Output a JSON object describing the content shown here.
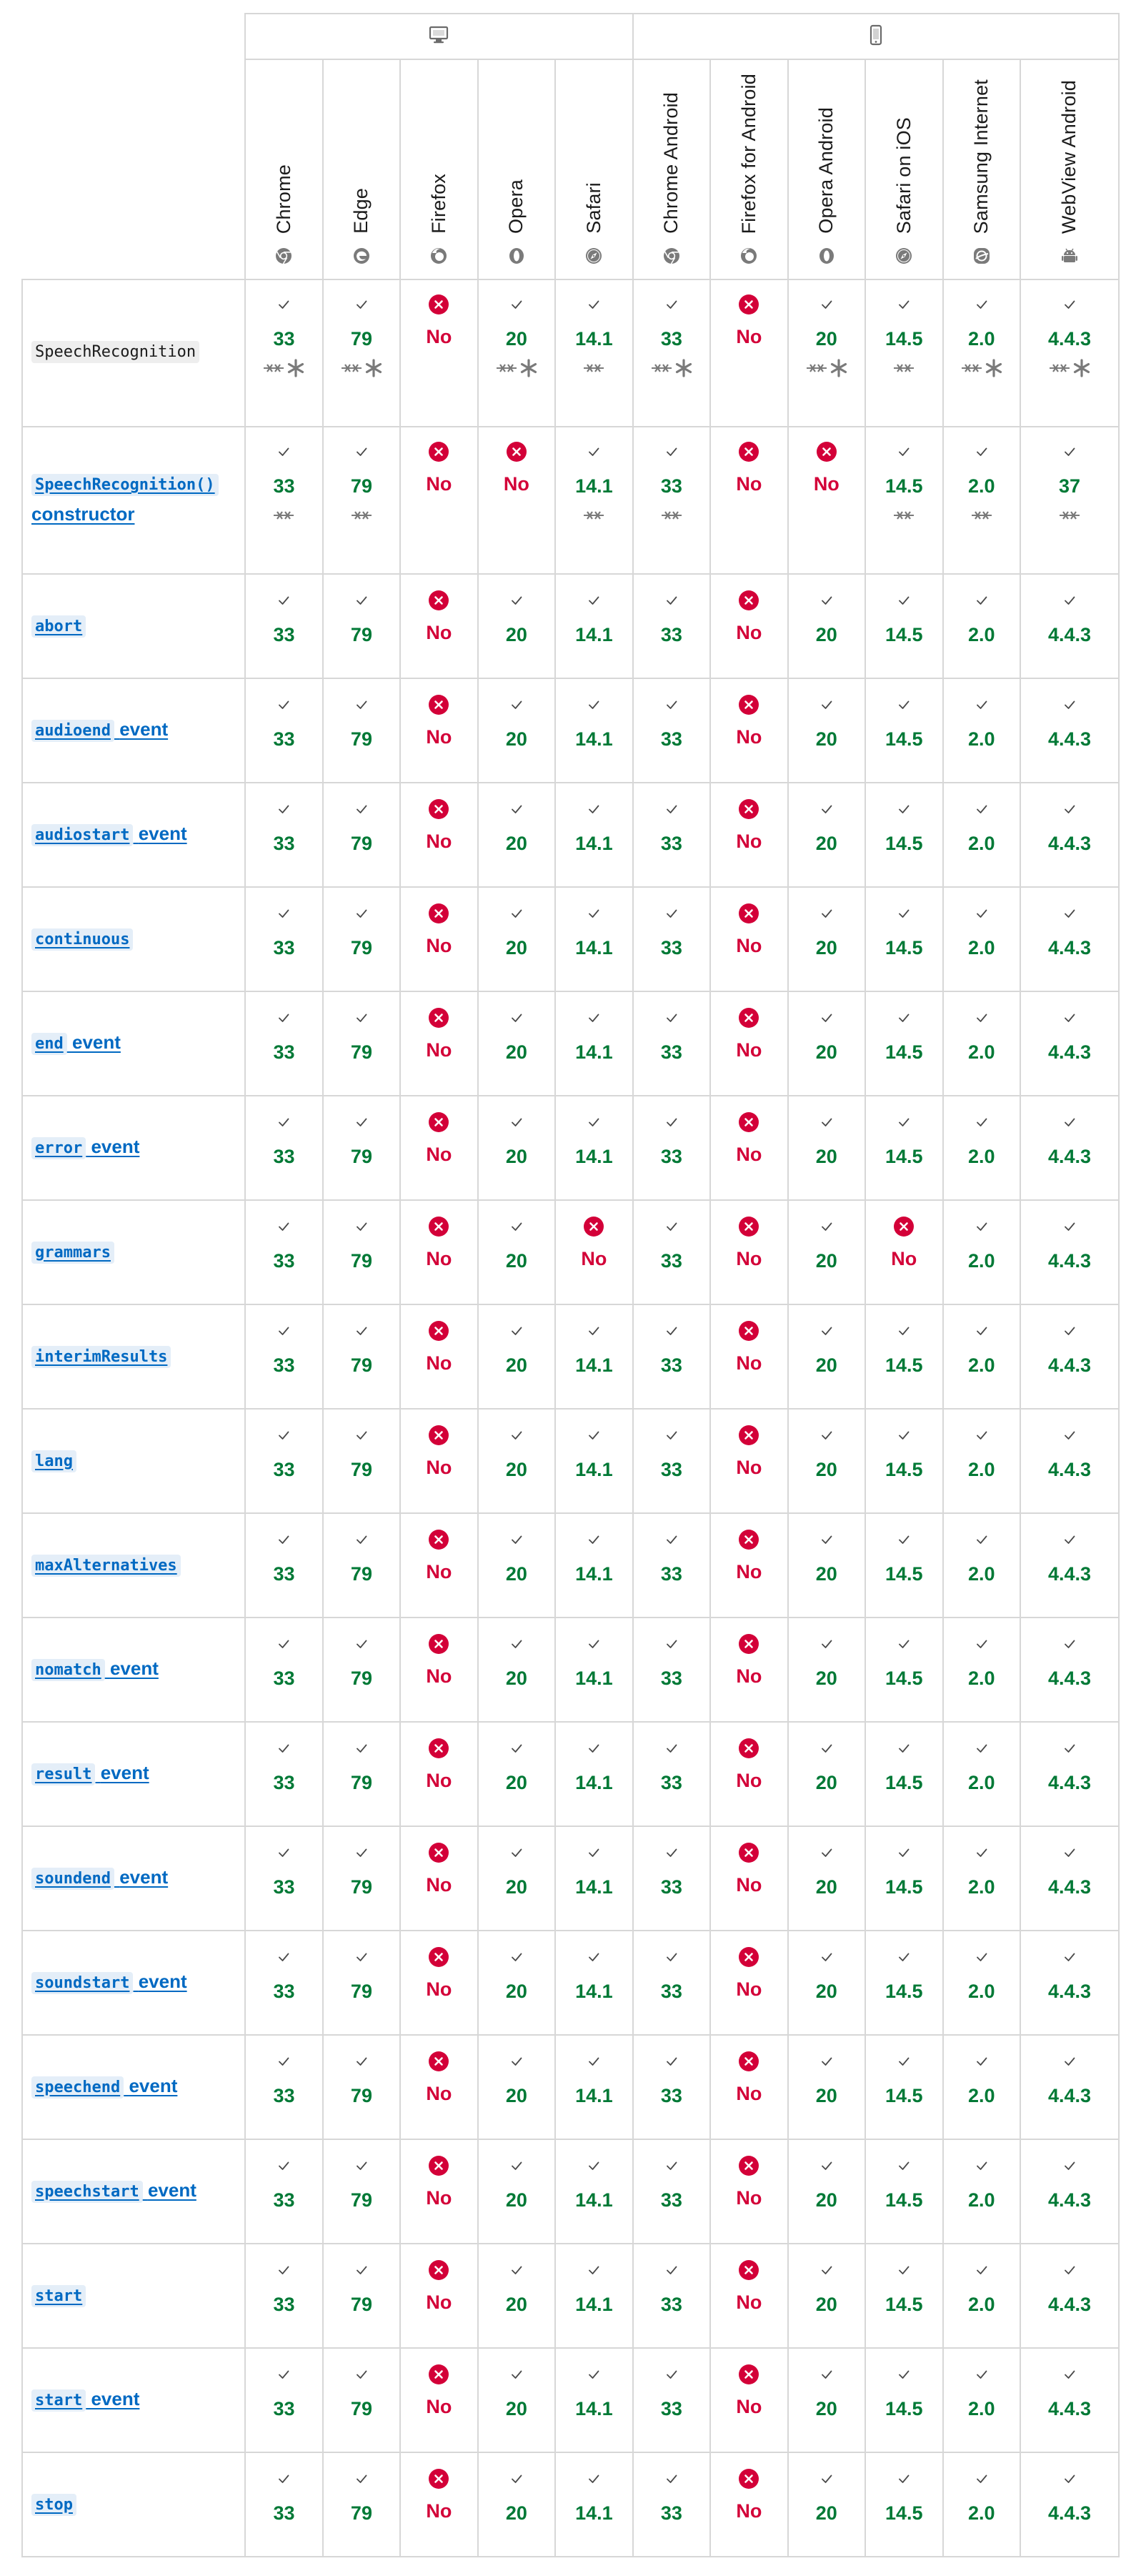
{
  "platforms": [
    {
      "name": "desktop-icon",
      "colspan": 5
    },
    {
      "name": "mobile-icon",
      "colspan": 6
    }
  ],
  "browsers": [
    {
      "label": "Chrome",
      "icon": "chrome-icon"
    },
    {
      "label": "Edge",
      "icon": "edge-icon"
    },
    {
      "label": "Firefox",
      "icon": "firefox-icon"
    },
    {
      "label": "Opera",
      "icon": "opera-icon"
    },
    {
      "label": "Safari",
      "icon": "safari-icon"
    },
    {
      "label": "Chrome Android",
      "icon": "chrome-icon"
    },
    {
      "label": "Firefox for Android",
      "icon": "firefox-icon"
    },
    {
      "label": "Opera Android",
      "icon": "opera-icon"
    },
    {
      "label": "Safari on iOS",
      "icon": "safari-icon"
    },
    {
      "label": "Samsung Internet",
      "icon": "samsung-internet-icon"
    },
    {
      "label": "WebView Android",
      "icon": "android-icon"
    }
  ],
  "colors": {
    "yes": "#007936",
    "no": "#d30038",
    "border": "#d7d7d7",
    "link": "#0069c2"
  },
  "rows": [
    {
      "code": "SpeechRecognition",
      "text": "",
      "link": false,
      "tall": true,
      "cells": [
        [
          "33",
          "y",
          "pd"
        ],
        [
          "79",
          "y",
          "pd"
        ],
        [
          "No",
          "n",
          ""
        ],
        [
          "20",
          "y",
          "pd"
        ],
        [
          "14.1",
          "y",
          "p"
        ],
        [
          "33",
          "y",
          "pd"
        ],
        [
          "No",
          "n",
          ""
        ],
        [
          "20",
          "y",
          "pd"
        ],
        [
          "14.5",
          "y",
          "p"
        ],
        [
          "2.0",
          "y",
          "pd"
        ],
        [
          "4.4.3",
          "y",
          "pd"
        ]
      ]
    },
    {
      "code": "SpeechRecognition()",
      "text": "constructor",
      "link": true,
      "tall": true,
      "wrap": true,
      "cells": [
        [
          "33",
          "y",
          "p"
        ],
        [
          "79",
          "y",
          "p"
        ],
        [
          "No",
          "n",
          ""
        ],
        [
          "No",
          "n",
          ""
        ],
        [
          "14.1",
          "y",
          "p"
        ],
        [
          "33",
          "y",
          "p"
        ],
        [
          "No",
          "n",
          ""
        ],
        [
          "No",
          "n",
          ""
        ],
        [
          "14.5",
          "y",
          "p"
        ],
        [
          "2.0",
          "y",
          "p"
        ],
        [
          "37",
          "y",
          "p"
        ]
      ]
    },
    {
      "code": "abort",
      "text": "",
      "link": true,
      "std": true
    },
    {
      "code": "audioend",
      "text": "event",
      "link": true,
      "std": true
    },
    {
      "code": "audiostart",
      "text": "event",
      "link": true,
      "std": true
    },
    {
      "code": "continuous",
      "text": "",
      "link": true,
      "std": true
    },
    {
      "code": "end",
      "text": "event",
      "link": true,
      "std": true
    },
    {
      "code": "error",
      "text": "event",
      "link": true,
      "std": true
    },
    {
      "code": "grammars",
      "text": "",
      "link": true,
      "cells": [
        [
          "33",
          "y",
          ""
        ],
        [
          "79",
          "y",
          ""
        ],
        [
          "No",
          "n",
          ""
        ],
        [
          "20",
          "y",
          ""
        ],
        [
          "No",
          "n",
          ""
        ],
        [
          "33",
          "y",
          ""
        ],
        [
          "No",
          "n",
          ""
        ],
        [
          "20",
          "y",
          ""
        ],
        [
          "No",
          "n",
          ""
        ],
        [
          "2.0",
          "y",
          ""
        ],
        [
          "4.4.3",
          "y",
          ""
        ]
      ]
    },
    {
      "code": "interimResults",
      "text": "",
      "link": true,
      "std": true
    },
    {
      "code": "lang",
      "text": "",
      "link": true,
      "std": true
    },
    {
      "code": "maxAlternatives",
      "text": "",
      "link": true,
      "std": true
    },
    {
      "code": "nomatch",
      "text": "event",
      "link": true,
      "std": true
    },
    {
      "code": "result",
      "text": "event",
      "link": true,
      "std": true
    },
    {
      "code": "soundend",
      "text": "event",
      "link": true,
      "std": true
    },
    {
      "code": "soundstart",
      "text": "event",
      "link": true,
      "std": true
    },
    {
      "code": "speechend",
      "text": "event",
      "link": true,
      "std": true
    },
    {
      "code": "speechstart",
      "text": "event",
      "link": true,
      "std": true
    },
    {
      "code": "start",
      "text": "",
      "link": true,
      "std": true
    },
    {
      "code": "start",
      "text": "event",
      "link": true,
      "std": true
    },
    {
      "code": "stop",
      "text": "",
      "link": true,
      "std": true
    }
  ],
  "std_cells": [
    [
      "33",
      "y",
      ""
    ],
    [
      "79",
      "y",
      ""
    ],
    [
      "No",
      "n",
      ""
    ],
    [
      "20",
      "y",
      ""
    ],
    [
      "14.1",
      "y",
      ""
    ],
    [
      "33",
      "y",
      ""
    ],
    [
      "No",
      "n",
      ""
    ],
    [
      "20",
      "y",
      ""
    ],
    [
      "14.5",
      "y",
      ""
    ],
    [
      "2.0",
      "y",
      ""
    ],
    [
      "4.4.3",
      "y",
      ""
    ]
  ]
}
